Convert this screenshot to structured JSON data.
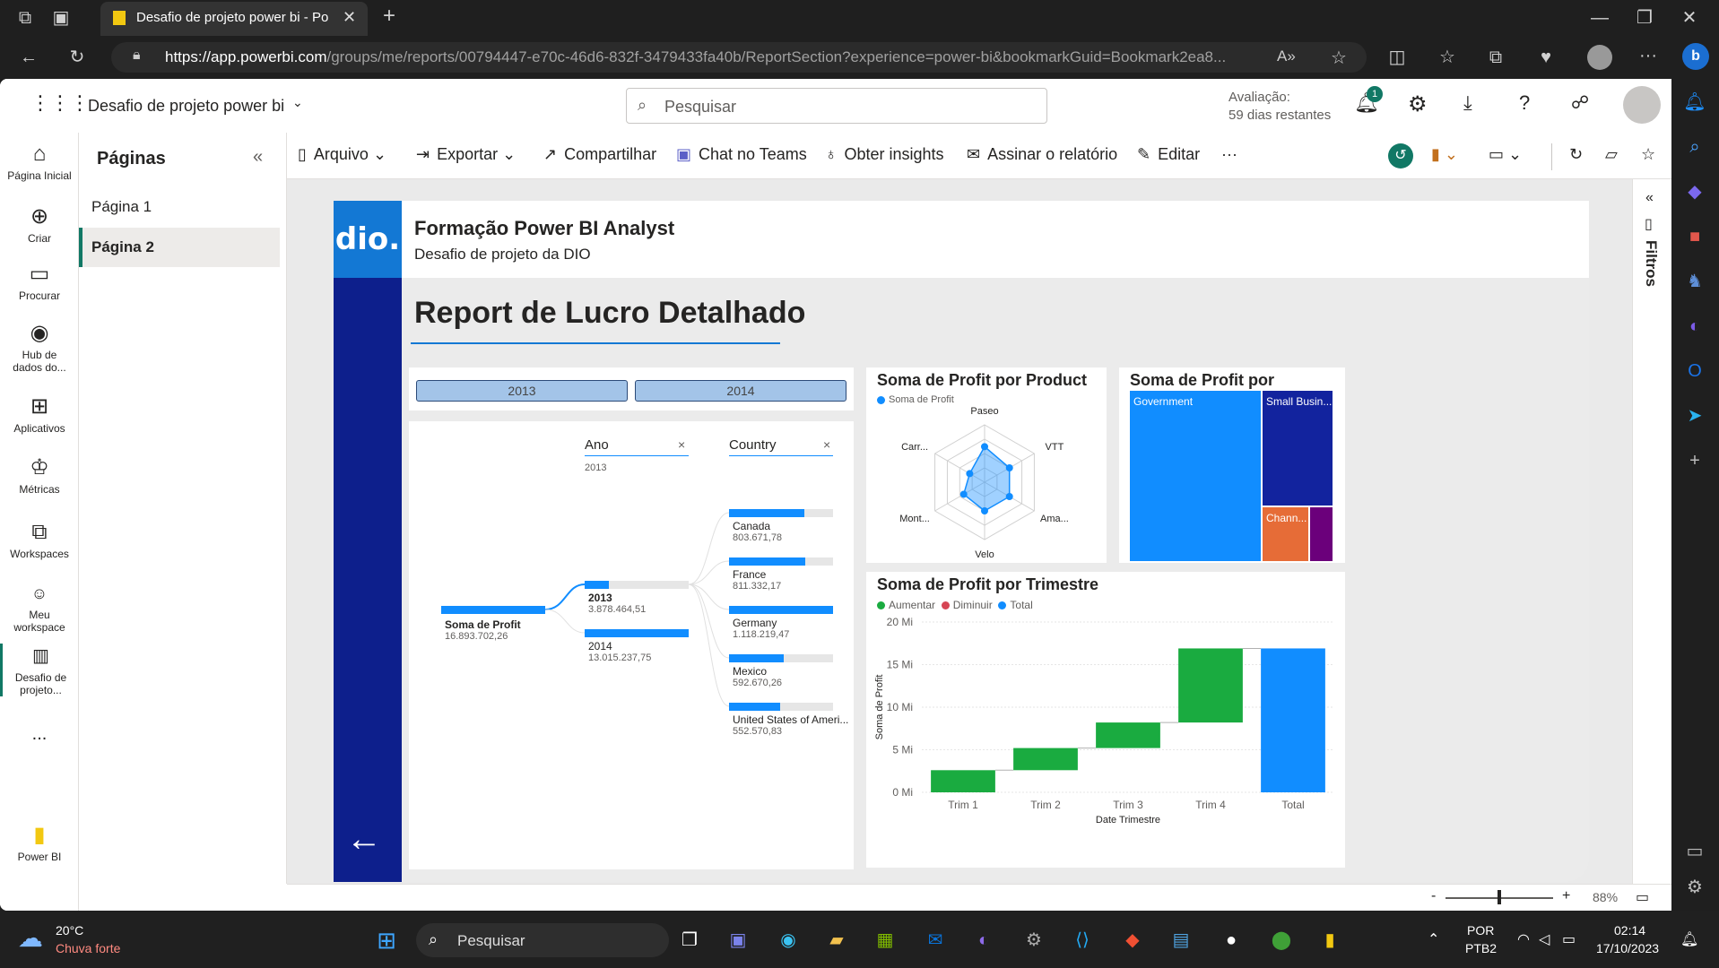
{
  "browser": {
    "tab_title": "Desafio de projeto power bi - Po",
    "url_host": "https://app.powerbi.com",
    "url_path": "/groups/me/reports/00794447-e70c-46d6-832f-3479433fa40b/ReportSection?experience=power-bi&bookmarkGuid=Bookmark2ea8..."
  },
  "header": {
    "workspace_title": "Desafio de projeto power bi",
    "search_placeholder": "Pesquisar",
    "trial_line1": "Avaliação:",
    "trial_line2": "59 dias restantes",
    "notif_count": "1"
  },
  "nav": {
    "items": [
      {
        "label": "Página Inicial",
        "icon": "home-icon"
      },
      {
        "label": "Criar",
        "icon": "plus-circle-icon"
      },
      {
        "label": "Procurar",
        "icon": "folder-icon"
      },
      {
        "label": "Hub de dados do...",
        "icon": "data-hub-icon"
      },
      {
        "label": "Aplicativos",
        "icon": "apps-icon"
      },
      {
        "label": "Métricas",
        "icon": "trophy-icon"
      },
      {
        "label": "Workspaces",
        "icon": "workspaces-icon"
      },
      {
        "label": "Meu workspace",
        "icon": "person-icon"
      },
      {
        "label": "Desafio de projeto...",
        "icon": "report-icon"
      }
    ],
    "more": "...",
    "brand": "Power BI"
  },
  "pages": {
    "title": "Páginas",
    "items": [
      "Página 1",
      "Página 2"
    ],
    "active": "Página 2"
  },
  "cmdbar": {
    "arquivo": "Arquivo",
    "exportar": "Exportar",
    "compartilhar": "Compartilhar",
    "chat": "Chat no Teams",
    "insights": "Obter insights",
    "assinar": "Assinar o relatório",
    "editar": "Editar",
    "more": "···"
  },
  "report": {
    "logo": "dio.",
    "title": "Formação Power BI Analyst",
    "subtitle": "Desafio de projeto da DIO",
    "heading": "Report de Lucro Detalhado",
    "slicer": [
      "2013",
      "2014"
    ],
    "decomp": {
      "col1": "Ano",
      "col1_sub": "2013",
      "col2": "Country",
      "root_label": "Soma de Profit",
      "root_value": "16.893.702,26",
      "years": [
        {
          "label": "2013",
          "value": "3.878.464,51",
          "frac": 0.23
        },
        {
          "label": "2014",
          "value": "13.015.237,75",
          "frac": 1.0
        }
      ],
      "countries": [
        {
          "label": "Canada",
          "value": "803.671,78",
          "frac": 0.72
        },
        {
          "label": "France",
          "value": "811.332,17",
          "frac": 0.73
        },
        {
          "label": "Germany",
          "value": "1.118.219,47",
          "frac": 1.0
        },
        {
          "label": "Mexico",
          "value": "592.670,26",
          "frac": 0.53
        },
        {
          "label": "United States of Ameri...",
          "value": "552.570,83",
          "frac": 0.49
        }
      ]
    },
    "radar": {
      "title": "Soma de Profit por Product",
      "legend": "Soma de Profit",
      "axes": [
        "Paseo",
        "VTT",
        "Ama...",
        "Velo",
        "Mont...",
        "Carr..."
      ],
      "values": [
        0.62,
        0.5,
        0.5,
        0.5,
        0.42,
        0.3
      ]
    },
    "treemap": {
      "title": "Soma de Profit por Segment",
      "segments": [
        {
          "label": "Government",
          "color": "#118dff"
        },
        {
          "label": "Small Busin...",
          "color": "#12239e"
        },
        {
          "label": "Chann...",
          "color": "#e66c37"
        },
        {
          "label": "",
          "color": "#6b007b"
        }
      ]
    }
  },
  "chart_data": {
    "type": "bar",
    "subtype": "waterfall",
    "title": "Soma de Profit por Trimestre",
    "legend": [
      {
        "label": "Aumentar",
        "color": "#1aab40"
      },
      {
        "label": "Diminuir",
        "color": "#d64554"
      },
      {
        "label": "Total",
        "color": "#118dff"
      }
    ],
    "categories": [
      "Trim 1",
      "Trim 2",
      "Trim 3",
      "Trim 4",
      "Total"
    ],
    "start": [
      0,
      2.6,
      5.2,
      8.2,
      0
    ],
    "end": [
      2.6,
      5.2,
      8.2,
      16.9,
      16.9
    ],
    "kind": [
      "inc",
      "inc",
      "inc",
      "inc",
      "total"
    ],
    "xlabel": "Date Trimestre",
    "ylabel": "Soma de Profit",
    "ylim": [
      0,
      20
    ],
    "yticks": [
      "0 Mi",
      "5 Mi",
      "10 Mi",
      "15 Mi",
      "20 Mi"
    ]
  },
  "status": {
    "zoom": "88%",
    "minus": "-",
    "plus": "+"
  },
  "filters": {
    "label": "Filtros"
  },
  "taskbar": {
    "weather_temp": "20°C",
    "weather_desc": "Chuva forte",
    "search": "Pesquisar",
    "lang1": "POR",
    "lang2": "PTB2",
    "time": "02:14",
    "date": "17/10/2023"
  },
  "colors": {
    "accent": "#118dff",
    "dark_blue": "#0d1f8c",
    "green": "#1aab40"
  }
}
